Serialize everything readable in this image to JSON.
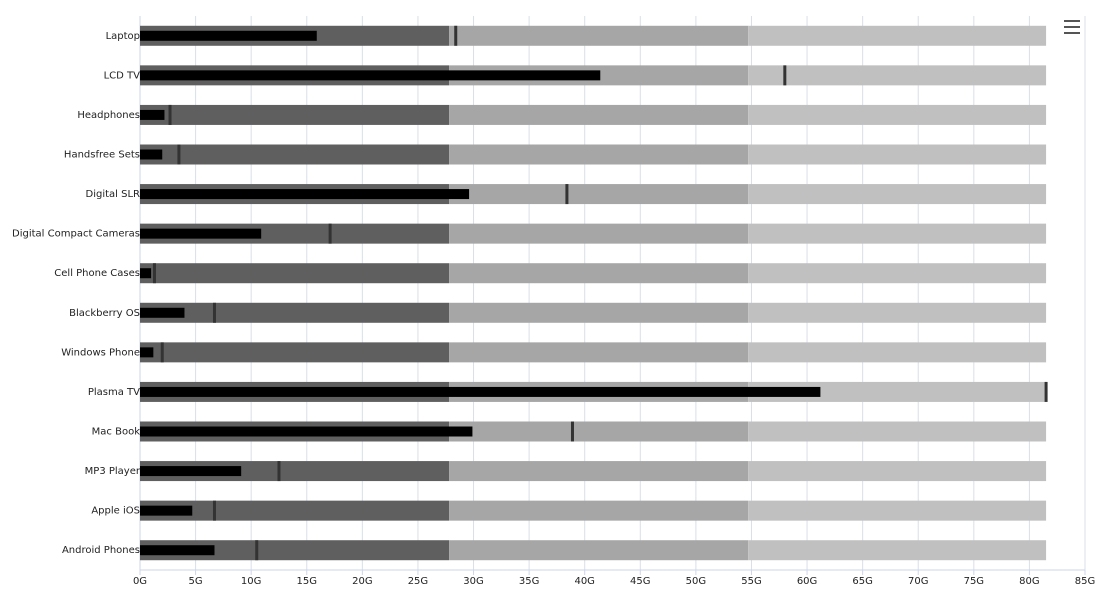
{
  "chart_data": {
    "type": "bullet",
    "categories": [
      "Laptop",
      "LCD TV",
      "Headphones",
      "Handsfree Sets",
      "Digital SLR",
      "Digital Compact Cameras",
      "Cell Phone Cases",
      "Blackberry OS",
      "Windows Phone",
      "Plasma TV",
      "Mac Book",
      "MP3 Player",
      "Apple iOS",
      "Android Phones"
    ],
    "values": [
      15.9,
      41.4,
      2.2,
      2.0,
      29.6,
      10.9,
      1.0,
      4.0,
      1.2,
      61.2,
      29.9,
      9.1,
      4.7,
      6.7
    ],
    "targets": [
      28.4,
      58.0,
      2.7,
      3.5,
      38.4,
      17.1,
      1.3,
      6.7,
      2.0,
      81.5,
      38.9,
      12.5,
      6.7,
      10.5
    ],
    "ranges": [
      27.8,
      54.7,
      81.5
    ],
    "range_colors": [
      "#5f5f5f",
      "#a6a6a6",
      "#c0c0c0"
    ],
    "color": "#000000",
    "target_color": "#333333",
    "xlim": [
      0,
      85
    ],
    "xticks": [
      {
        "value": 0,
        "label": "0G"
      },
      {
        "value": 5,
        "label": "5G"
      },
      {
        "value": 10,
        "label": "10G"
      },
      {
        "value": 15,
        "label": "15G"
      },
      {
        "value": 20,
        "label": "20G"
      },
      {
        "value": 25,
        "label": "25G"
      },
      {
        "value": 30,
        "label": "30G"
      },
      {
        "value": 35,
        "label": "35G"
      },
      {
        "value": 40,
        "label": "40G"
      },
      {
        "value": 45,
        "label": "45G"
      },
      {
        "value": 50,
        "label": "50G"
      },
      {
        "value": 55,
        "label": "55G"
      },
      {
        "value": 60,
        "label": "60G"
      },
      {
        "value": 65,
        "label": "65G"
      },
      {
        "value": 70,
        "label": "70G"
      },
      {
        "value": 75,
        "label": "75G"
      },
      {
        "value": 80,
        "label": "80G"
      },
      {
        "value": 85,
        "label": "85G"
      }
    ],
    "grid": true
  }
}
